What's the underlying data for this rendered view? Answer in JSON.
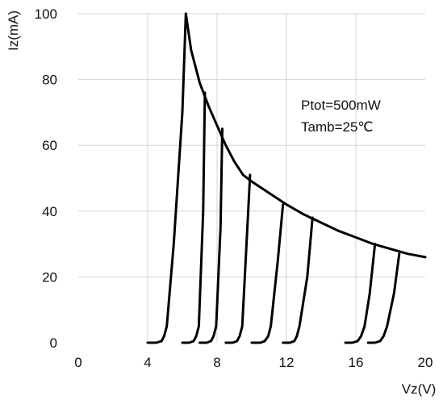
{
  "chart_data": {
    "type": "line",
    "xlabel": "Vz(V)",
    "ylabel": "Iz(mA)",
    "xlim": [
      0,
      20
    ],
    "ylim": [
      0,
      100
    ],
    "x_ticks": [
      "0",
      "4",
      "8",
      "12",
      "16",
      "20"
    ],
    "y_ticks": [
      "0",
      "20",
      "40",
      "60",
      "80",
      "100"
    ],
    "grid": true,
    "annotations": [
      "Ptot=500mW",
      "Tamb=25℃"
    ],
    "envelope": {
      "x": [
        6.2,
        6.5,
        7,
        7.5,
        8,
        8.5,
        9,
        9.5,
        10,
        11,
        12,
        13,
        14,
        15,
        16,
        17,
        18,
        19,
        20
      ],
      "y": [
        100,
        89,
        79,
        72,
        66,
        60,
        55,
        51,
        49,
        45.5,
        42,
        39,
        36.5,
        34,
        32,
        30,
        28.5,
        27,
        26
      ]
    },
    "series": [
      {
        "x": [
          4.0,
          4.5,
          4.8,
          4.95,
          5.1,
          5.5,
          6.0,
          6.2
        ],
        "y": [
          0,
          0,
          0.5,
          2,
          5,
          30,
          70,
          100
        ]
      },
      {
        "x": [
          6.0,
          6.4,
          6.65,
          6.8,
          6.95,
          7.2,
          7.3
        ],
        "y": [
          0,
          0,
          0.5,
          2,
          5,
          40,
          76
        ]
      },
      {
        "x": [
          7.0,
          7.4,
          7.65,
          7.8,
          7.95,
          8.2,
          8.3
        ],
        "y": [
          0,
          0,
          0.5,
          2,
          5,
          35,
          65
        ]
      },
      {
        "x": [
          8.5,
          8.9,
          9.15,
          9.3,
          9.45,
          9.7,
          9.9
        ],
        "y": [
          0,
          0,
          0.5,
          2,
          5,
          30,
          51
        ]
      },
      {
        "x": [
          10.0,
          10.5,
          10.75,
          10.95,
          11.1,
          11.5,
          11.8
        ],
        "y": [
          0,
          0,
          0.5,
          2,
          5,
          25,
          42
        ]
      },
      {
        "x": [
          11.8,
          12.2,
          12.45,
          12.6,
          12.75,
          13.2,
          13.5
        ],
        "y": [
          0,
          0,
          0.5,
          2,
          5,
          20,
          38
        ]
      },
      {
        "x": [
          15.4,
          15.8,
          16.1,
          16.3,
          16.5,
          16.8,
          17.1
        ],
        "y": [
          0,
          0,
          0.5,
          2,
          5,
          15,
          30
        ]
      },
      {
        "x": [
          16.7,
          17.1,
          17.4,
          17.6,
          17.8,
          18.2,
          18.5
        ],
        "y": [
          0,
          0,
          0.5,
          2,
          5,
          15,
          27
        ]
      }
    ]
  }
}
